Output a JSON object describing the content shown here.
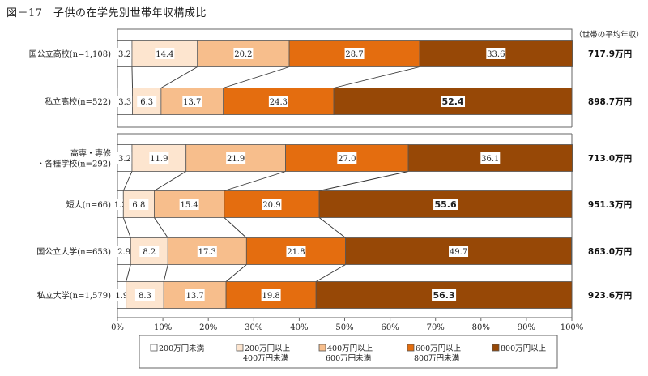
{
  "figure": {
    "title": "図－17　子供の在学先別世帯年収構成比",
    "avg_column_title": "（世帯の平均年収）"
  },
  "chart_data": {
    "type": "bar",
    "orientation": "horizontal",
    "stacked": true,
    "percent_stacked": true,
    "xlim": [
      0,
      100
    ],
    "x_ticks": [
      "0%",
      "10%",
      "20%",
      "30%",
      "40%",
      "50%",
      "60%",
      "70%",
      "80%",
      "90%",
      "100%"
    ],
    "categories": [
      [
        "国公立高校(n=1,108)"
      ],
      [
        "私立高校(n=522)"
      ],
      [
        "高専・専修",
        "・各種学校(n=292)"
      ],
      [
        "短大(n=66)"
      ],
      [
        "国公立大学(n=653)"
      ],
      [
        "私立大学(n=1,579)"
      ]
    ],
    "group_break_after": 1,
    "series": [
      {
        "legend": [
          "200万円未満"
        ],
        "color": "#ffffff",
        "values": [
          3.2,
          3.3,
          3.2,
          1.3,
          2.9,
          1.9
        ]
      },
      {
        "legend": [
          "200万円以上",
          "400万円未満"
        ],
        "color": "#fde5cf",
        "values": [
          14.4,
          6.3,
          11.9,
          6.8,
          8.2,
          8.3
        ]
      },
      {
        "legend": [
          "400万円以上",
          "600万円未満"
        ],
        "color": "#f7be8c",
        "values": [
          20.2,
          13.7,
          21.9,
          15.4,
          17.3,
          13.7
        ]
      },
      {
        "legend": [
          "600万円以上",
          "800万円未満"
        ],
        "color": "#e46d0f",
        "values": [
          28.7,
          24.3,
          27.0,
          20.9,
          21.8,
          19.8
        ]
      },
      {
        "legend": [
          "800万円以上"
        ],
        "color": "#974806",
        "values": [
          33.6,
          52.4,
          36.1,
          55.6,
          49.7,
          56.3
        ]
      }
    ],
    "value_labels": [
      [
        "3.2",
        "14.4",
        "20.2",
        "28.7",
        "33.6"
      ],
      [
        "3.3",
        "6.3",
        "13.7",
        "24.3",
        "52.4"
      ],
      [
        "3.2",
        "11.9",
        "21.9",
        "27.0",
        "36.1"
      ],
      [
        "1.3",
        "6.8",
        "15.4",
        "20.9",
        "55.6"
      ],
      [
        "2.9",
        "8.2",
        "17.3",
        "21.8",
        "49.7"
      ],
      [
        "1.9",
        "8.3",
        "13.7",
        "19.8",
        "56.3"
      ]
    ],
    "bold_labels": [
      [
        1,
        4
      ],
      [
        3,
        4
      ],
      [
        5,
        4
      ]
    ],
    "average_income": [
      "717.9万円",
      "898.7万円",
      "713.0万円",
      "951.3万円",
      "863.0万円",
      "923.6万円"
    ],
    "connector_lines": true,
    "legend_position": "bottom"
  }
}
